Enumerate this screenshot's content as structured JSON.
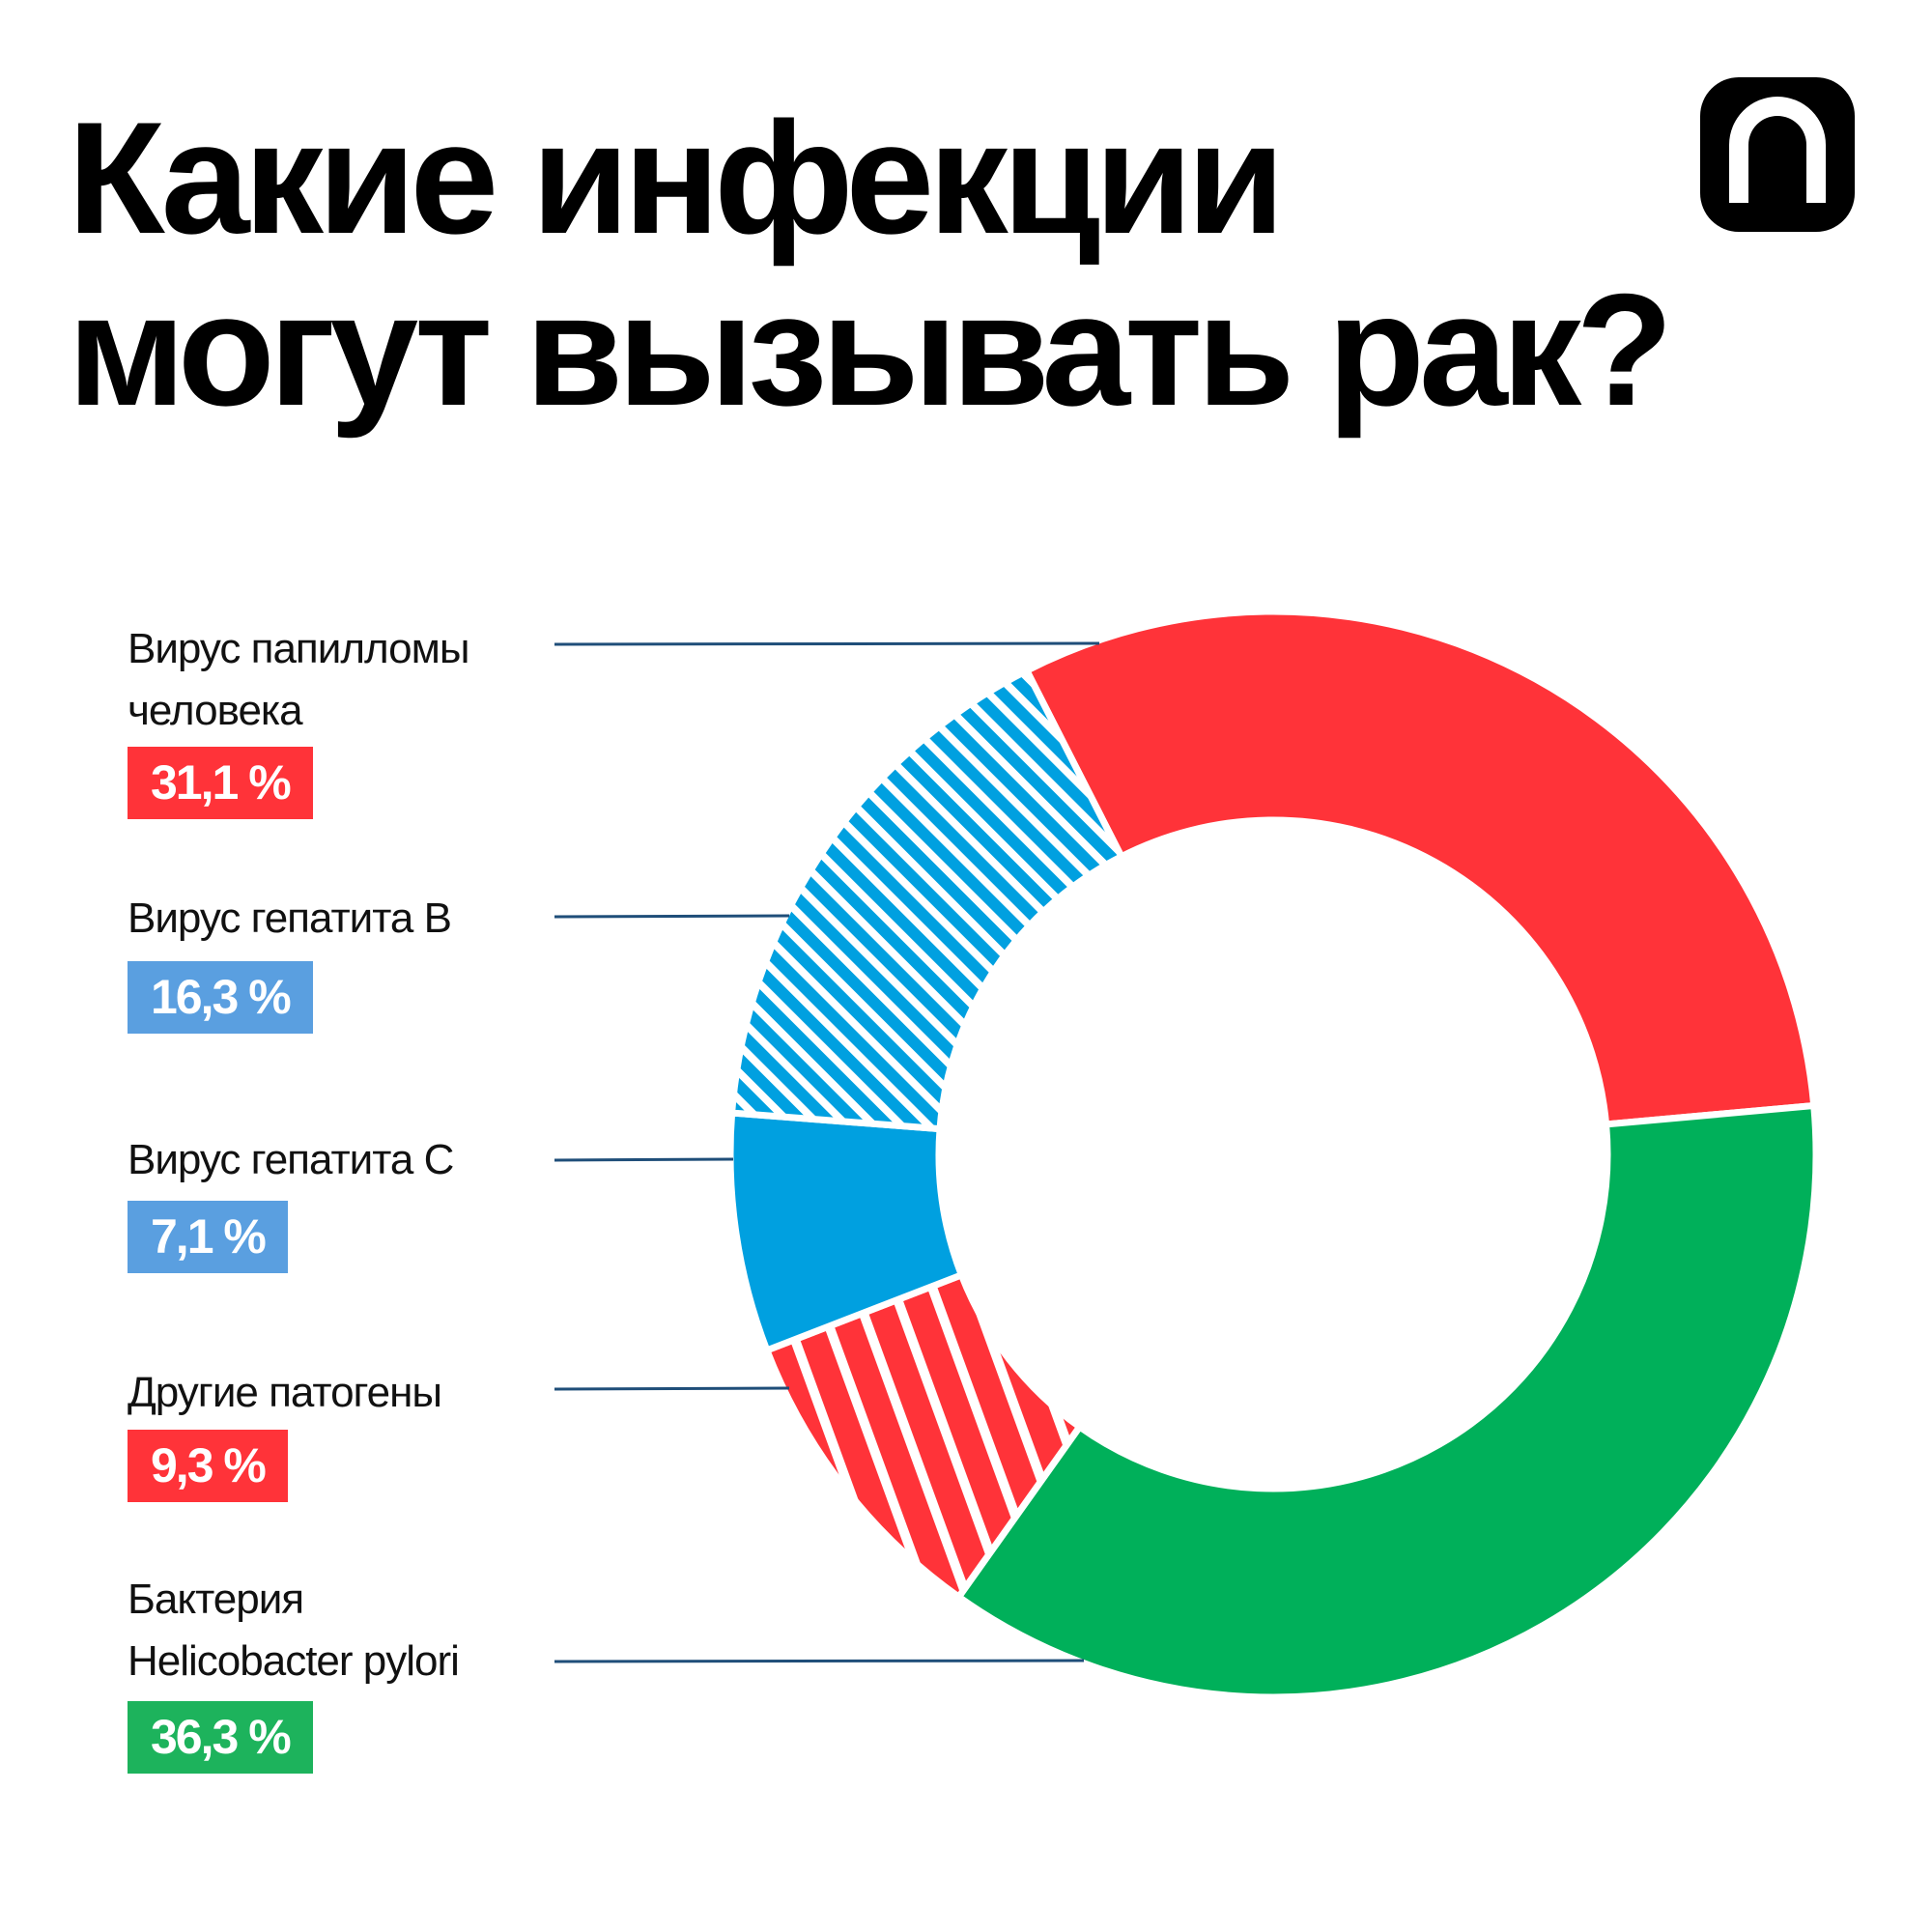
{
  "title_lines": [
    "Какие инфекции",
    "могут вызывать рак?"
  ],
  "logo": "n-logo",
  "colors": {
    "red": "#ff3339",
    "blue": "#00a0e0",
    "green": "#00b05a",
    "badge_blue": "#5a9fe0",
    "badge_green": "#1db35c",
    "leader": "#1f4e79"
  },
  "chart_data": {
    "type": "pie",
    "subtype": "donut",
    "legend": "left",
    "start_angle_deg": -27,
    "direction": "clockwise",
    "slices": [
      {
        "label_lines": [
          "Вирус папилломы",
          "человека"
        ],
        "value": 31.1,
        "value_text": "31,1 %",
        "color": "#ff3339",
        "hatched": false,
        "badge_color": "#ff3339"
      },
      {
        "label_lines": [
          "Бактерия",
          "Helicobacter pylori"
        ],
        "value": 36.3,
        "value_text": "36,3 %",
        "color": "#00b05a",
        "hatched": false,
        "badge_color": "#1db35c"
      },
      {
        "label_lines": [
          "Другие патогены"
        ],
        "value": 9.3,
        "value_text": "9,3 %",
        "color": "#ff3339",
        "hatched": true,
        "badge_color": "#ff3339"
      },
      {
        "label_lines": [
          "Вирус гепатита C"
        ],
        "value": 7.1,
        "value_text": "7,1 %",
        "color": "#00a0e0",
        "hatched": false,
        "badge_color": "#5a9fe0"
      },
      {
        "label_lines": [
          "Вирус гепатита B"
        ],
        "value": 16.3,
        "value_text": "16,3 %",
        "color": "#00a0e0",
        "hatched": true,
        "badge_color": "#5a9fe0"
      }
    ]
  }
}
